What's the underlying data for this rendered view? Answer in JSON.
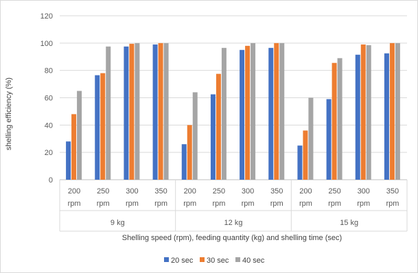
{
  "chart_data": {
    "type": "bar",
    "title": "",
    "xlabel": "Shelling speed (rpm), feeding quantity (kg) and shelling time (sec)",
    "ylabel": "shelling efficiency (%)",
    "ylim": [
      0,
      120
    ],
    "yticks": [
      0,
      20,
      40,
      60,
      80,
      100,
      120
    ],
    "grid": true,
    "legend_position": "bottom",
    "groups": [
      {
        "label": "9 kg",
        "categories": [
          "200 rpm",
          "250 rpm",
          "300 rpm",
          "350 rpm"
        ]
      },
      {
        "label": "12 kg",
        "categories": [
          "200 rpm",
          "250 rpm",
          "300 rpm",
          "350 rpm"
        ]
      },
      {
        "label": "15 kg",
        "categories": [
          "200 rpm",
          "250 rpm",
          "300 rpm",
          "350 rpm"
        ]
      }
    ],
    "series": [
      {
        "name": "20 sec",
        "color": "#4472C4",
        "values": [
          28,
          76.5,
          97.5,
          99,
          26,
          62.5,
          95,
          96.5,
          25,
          59,
          91.5,
          92.5
        ]
      },
      {
        "name": "30 sec",
        "color": "#ED7D31",
        "values": [
          48,
          78,
          99.5,
          100,
          40,
          77.5,
          98,
          100,
          36,
          85.5,
          99,
          100
        ]
      },
      {
        "name": "40 sec",
        "color": "#A5A5A5",
        "values": [
          65,
          97.5,
          100,
          100,
          64,
          96.5,
          100,
          100,
          60,
          89,
          98.5,
          100
        ]
      }
    ]
  }
}
